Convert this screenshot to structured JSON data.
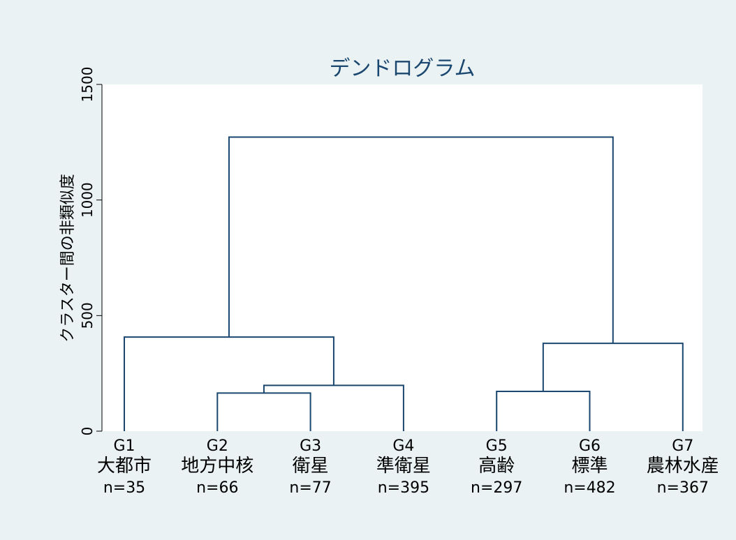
{
  "chart_data": {
    "type": "dendrogram",
    "title": "デンドログラム",
    "ylabel": "クラスター間の非類似度",
    "ylim": [
      0,
      1500
    ],
    "yticks": [
      0,
      500,
      1000,
      1500
    ],
    "grid": false,
    "leaves": [
      {
        "id": "G1",
        "name": "大都市",
        "n": "n=35"
      },
      {
        "id": "G2",
        "name": "地方中核",
        "n": "n=66"
      },
      {
        "id": "G3",
        "name": "衛星",
        "n": "n=77"
      },
      {
        "id": "G4",
        "name": "準衛星",
        "n": "n=395"
      },
      {
        "id": "G5",
        "name": "高齢",
        "n": "n=297"
      },
      {
        "id": "G6",
        "name": "標準",
        "n": "n=482"
      },
      {
        "id": "G7",
        "name": "農林水産",
        "n": "n=367"
      }
    ],
    "merges": [
      {
        "left": "G2",
        "right": "G3",
        "height": 165
      },
      {
        "left": "G5",
        "right": "G6",
        "height": 172
      },
      {
        "left": "G2-G3",
        "right": "G4",
        "height": 198
      },
      {
        "left": "G5-G6",
        "right": "G7",
        "height": 380
      },
      {
        "left": "G1",
        "right": "G2-G3-G4",
        "height": 407
      },
      {
        "left": "G1-G2-G3-G4",
        "right": "G5-G6-G7",
        "height": 1272
      }
    ]
  },
  "colors": {
    "background": "#eaf2f3",
    "plot_area": "#ffffff",
    "line": "#1a476f",
    "title": "#1a476f"
  }
}
